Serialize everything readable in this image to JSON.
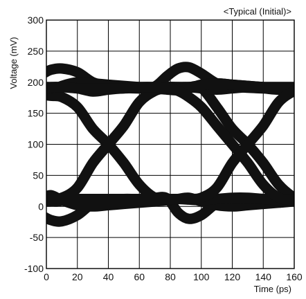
{
  "chart_data": {
    "type": "line",
    "title": "",
    "annotation": "<Typical (Initial)>",
    "xlabel": "Time (ps)",
    "ylabel": "Voltage (mV)",
    "xlim": [
      0,
      160
    ],
    "ylim": [
      -100,
      300
    ],
    "xticks": [
      0,
      20,
      40,
      60,
      80,
      100,
      120,
      140,
      160
    ],
    "yticks": [
      -100,
      -50,
      0,
      50,
      100,
      150,
      200,
      250,
      300
    ],
    "grid": true,
    "band_color": "#111111",
    "series": [
      {
        "x": [
          -2,
          3,
          10,
          20,
          30,
          40,
          50,
          60,
          70,
          78,
          85,
          92,
          100,
          110,
          120,
          130,
          140,
          150,
          160,
          166
        ],
        "values": [
          -16,
          -22,
          -24,
          -14,
          5,
          10,
          12,
          12,
          14,
          13,
          -10,
          -20,
          -14,
          5,
          10,
          12,
          12,
          10,
          9,
          9
        ]
      },
      {
        "x": [
          -2,
          3,
          10,
          20,
          30,
          40,
          50,
          60,
          70,
          78,
          85,
          92,
          100,
          110,
          120,
          130,
          140,
          150,
          160,
          166
        ],
        "values": [
          14,
          18,
          10,
          2,
          0,
          2,
          4,
          6,
          8,
          10,
          12,
          14,
          8,
          2,
          0,
          2,
          4,
          6,
          8,
          8
        ]
      },
      {
        "x": [
          -2,
          3,
          10,
          20,
          30,
          40,
          50,
          60,
          70,
          78,
          85,
          92,
          100,
          110,
          120,
          130,
          140,
          150,
          160,
          166
        ],
        "values": [
          214,
          220,
          222,
          216,
          200,
          194,
          191,
          190,
          193,
          210,
          222,
          224,
          214,
          198,
          193,
          191,
          190,
          188,
          190,
          190
        ]
      },
      {
        "x": [
          -2,
          3,
          10,
          20,
          30,
          40,
          50,
          60,
          70,
          78,
          85,
          92,
          100,
          110,
          120,
          130,
          140,
          150,
          160,
          166
        ],
        "values": [
          190,
          186,
          194,
          200,
          198,
          196,
          194,
          192,
          190,
          188,
          187,
          190,
          196,
          198,
          196,
          194,
          192,
          190,
          190,
          190
        ]
      },
      {
        "x": [
          -2,
          3,
          10,
          20,
          30,
          40,
          50,
          60,
          70,
          78,
          85,
          92,
          100,
          110,
          120,
          130,
          140,
          150,
          160,
          166
        ],
        "values": [
          180,
          178,
          176,
          160,
          125,
          100,
          70,
          35,
          14,
          12,
          12,
          11,
          10,
          12,
          14,
          14,
          12,
          10,
          8,
          8
        ]
      },
      {
        "x": [
          -2,
          3,
          10,
          20,
          30,
          40,
          50,
          60,
          70,
          78,
          85,
          92,
          100,
          110,
          120,
          130,
          140,
          150,
          160,
          166
        ],
        "values": [
          8,
          8,
          10,
          30,
          70,
          100,
          130,
          168,
          186,
          190,
          191,
          192,
          191,
          160,
          125,
          100,
          70,
          35,
          14,
          10
        ]
      },
      {
        "x": [
          -2,
          3,
          10,
          20,
          30,
          40,
          50,
          60,
          70,
          78,
          85,
          92,
          100,
          110,
          120,
          130,
          140,
          150,
          160,
          166
        ],
        "values": [
          12,
          14,
          14,
          30,
          70,
          100,
          130,
          168,
          186,
          192,
          192,
          192,
          190,
          188,
          190,
          192,
          192,
          192,
          192,
          192
        ]
      },
      {
        "x": [
          -2,
          3,
          10,
          20,
          30,
          40,
          50,
          60,
          70,
          78,
          85,
          92,
          100,
          110,
          120,
          130,
          140,
          150,
          160,
          166
        ],
        "values": [
          190,
          190,
          192,
          190,
          185,
          188,
          190,
          191,
          192,
          192,
          192,
          192,
          195,
          198,
          196,
          194,
          192,
          190,
          190,
          190
        ]
      },
      {
        "x": [
          -2,
          3,
          10,
          20,
          30,
          40,
          50,
          60,
          70,
          78,
          85,
          92,
          100,
          110,
          120,
          130,
          140,
          150,
          160,
          166
        ],
        "values": [
          190,
          192,
          192,
          190,
          190,
          190,
          190,
          192,
          192,
          190,
          186,
          176,
          160,
          130,
          100,
          70,
          35,
          14,
          10,
          8
        ]
      },
      {
        "x": [
          -2,
          3,
          10,
          20,
          30,
          40,
          50,
          60,
          70,
          78,
          85,
          92,
          100,
          110,
          120,
          130,
          140,
          150,
          160,
          166
        ],
        "values": [
          10,
          12,
          12,
          12,
          12,
          12,
          12,
          12,
          12,
          12,
          12,
          12,
          14,
          30,
          70,
          100,
          130,
          168,
          186,
          190
        ]
      }
    ]
  }
}
